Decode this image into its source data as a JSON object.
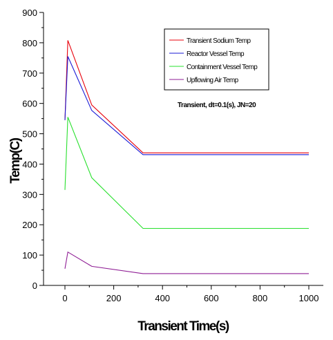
{
  "chart_data": {
    "type": "line",
    "xlabel": "Transient Time(s)",
    "ylabel": "Temp(C)",
    "xlim": [
      -80,
      1050
    ],
    "ylim": [
      0,
      900
    ],
    "xticks": [
      "0",
      "200",
      "400",
      "600",
      "800",
      "1000"
    ],
    "yticks": [
      "0",
      "100",
      "200",
      "300",
      "400",
      "500",
      "600",
      "700",
      "800",
      "900"
    ],
    "annotation": "Transient, dt=0.1(s), JN=20",
    "legend_position": "top-right",
    "grid": false,
    "series": [
      {
        "name": "Transient Sodium Temp",
        "color": "#e8000b",
        "x": [
          0,
          12,
          110,
          320,
          1000
        ],
        "y": [
          545,
          808,
          595,
          437,
          437
        ]
      },
      {
        "name": "Reactor Vessel Temp",
        "color": "#1a1ad6",
        "x": [
          0,
          12,
          110,
          320,
          1000
        ],
        "y": [
          545,
          755,
          577,
          431,
          431
        ]
      },
      {
        "name": "Containment Vessel Temp",
        "color": "#27e02c",
        "x": [
          0,
          12,
          110,
          320,
          1000
        ],
        "y": [
          315,
          555,
          355,
          188,
          188
        ]
      },
      {
        "name": "Upflowing Air Temp",
        "color": "#8e1c94",
        "x": [
          0,
          12,
          110,
          320,
          1000
        ],
        "y": [
          55,
          110,
          63,
          39,
          39
        ]
      }
    ]
  }
}
